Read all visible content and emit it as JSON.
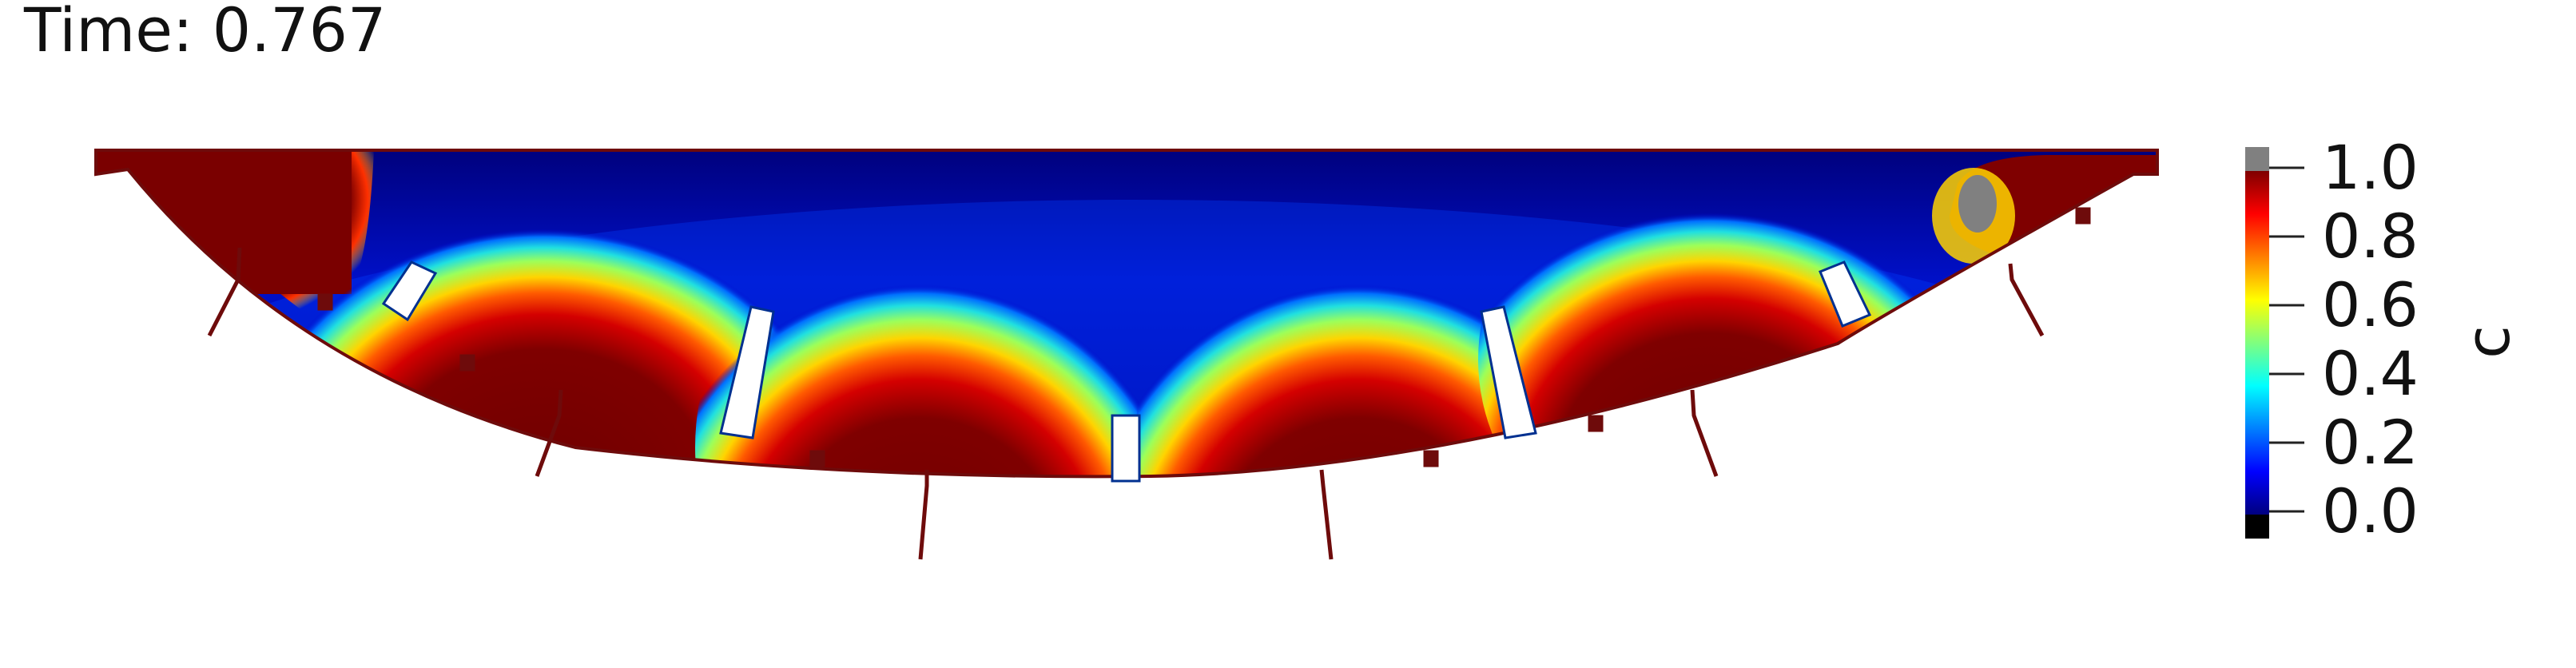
{
  "time_label": "Time: 0.767",
  "colorbar": {
    "title": "c",
    "range": [
      0.0,
      1.0
    ],
    "ticks": [
      "1.0",
      "0.8",
      "0.6",
      "0.4",
      "0.2",
      "0.0"
    ],
    "tick_values": [
      1.0,
      0.8,
      0.6,
      0.4,
      0.2,
      0.0
    ],
    "colormap": [
      "#00007f",
      "#0000ff",
      "#007fff",
      "#00ffff",
      "#7fff7f",
      "#ffff00",
      "#ff7f00",
      "#ff0000",
      "#7f0000"
    ],
    "above_range_color": "#808080",
    "below_range_color": "#000000"
  },
  "colors": {
    "background": "#ffffff",
    "outline": "#6e0b0b"
  }
}
